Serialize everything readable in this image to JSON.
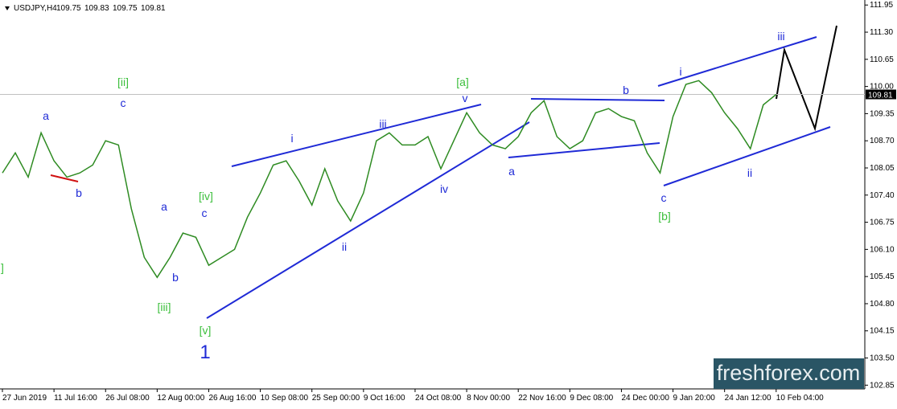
{
  "chart_data": {
    "type": "line",
    "title": "USDJPY,H4",
    "ohlc": [
      "109.75",
      "109.83",
      "109.75",
      "109.81"
    ],
    "last_price": 109.81,
    "watermark": "freshforex.com",
    "categories": [
      "27 Jun 2019",
      null,
      null,
      null,
      "11 Jul 16:00",
      null,
      null,
      null,
      "26 Jul 08:00",
      null,
      null,
      null,
      "12 Aug 00:00",
      null,
      null,
      null,
      "26 Aug 16:00",
      null,
      null,
      null,
      "10 Sep 08:00",
      null,
      null,
      null,
      "25 Sep 00:00",
      null,
      null,
      null,
      "9 Oct 16:00",
      null,
      null,
      null,
      "24 Oct 08:00",
      null,
      null,
      null,
      "8 Nov 00:00",
      null,
      null,
      null,
      "22 Nov 16:00",
      null,
      null,
      null,
      "9 Dec 08:00",
      null,
      null,
      null,
      "24 Dec 00:00",
      null,
      null,
      null,
      "9 Jan 20:00",
      null,
      null,
      null,
      "24 Jan 12:00",
      null,
      null,
      null,
      "10 Feb 04:00"
    ],
    "series": [
      {
        "name": "USDJPY",
        "color": "#2e8b22",
        "values": [
          107.93,
          108.41,
          107.83,
          108.89,
          108.22,
          107.83,
          107.93,
          108.12,
          108.7,
          108.6,
          107.07,
          105.91,
          105.43,
          105.91,
          106.49,
          106.39,
          105.72,
          105.91,
          106.1,
          106.87,
          107.45,
          108.12,
          108.22,
          107.74,
          107.16,
          108.03,
          107.26,
          106.78,
          107.45,
          108.7,
          108.89,
          108.6,
          108.6,
          108.8,
          108.03,
          108.7,
          109.37,
          108.89,
          108.6,
          108.51,
          108.8,
          109.37,
          109.66,
          108.8,
          108.51,
          108.7,
          109.37,
          109.47,
          109.28,
          109.18,
          108.41,
          107.93,
          109.28,
          110.05,
          110.14,
          109.85,
          109.37,
          108.99,
          108.51,
          109.56,
          109.81
        ]
      }
    ],
    "ylim": [
      102.76,
      112.07
    ],
    "yticks": [
      111.95,
      {
        "value": 111.3,
        "label": "111.30"
      },
      110.65,
      {
        "value": 110.0,
        "label": "110.00"
      },
      109.35,
      {
        "value": 108.7,
        "label": "108.70"
      },
      108.05,
      {
        "value": 107.4,
        "label": "107.40"
      },
      106.75,
      {
        "value": 106.1,
        "label": "106.10"
      },
      105.45,
      {
        "value": 104.8,
        "label": "104.80"
      },
      104.15,
      {
        "value": 103.5,
        "label": "103.50"
      },
      102.85
    ],
    "annotations": [
      "[ii]",
      "c",
      "a",
      "b",
      "a",
      "[iv]",
      "c",
      "b",
      "[iii]",
      "[v]",
      "1",
      "i",
      "ii",
      "iii",
      "iv",
      "v",
      "[a]",
      "a",
      "b",
      "c",
      "[b]",
      "i",
      "ii",
      "iii",
      "]"
    ]
  }
}
